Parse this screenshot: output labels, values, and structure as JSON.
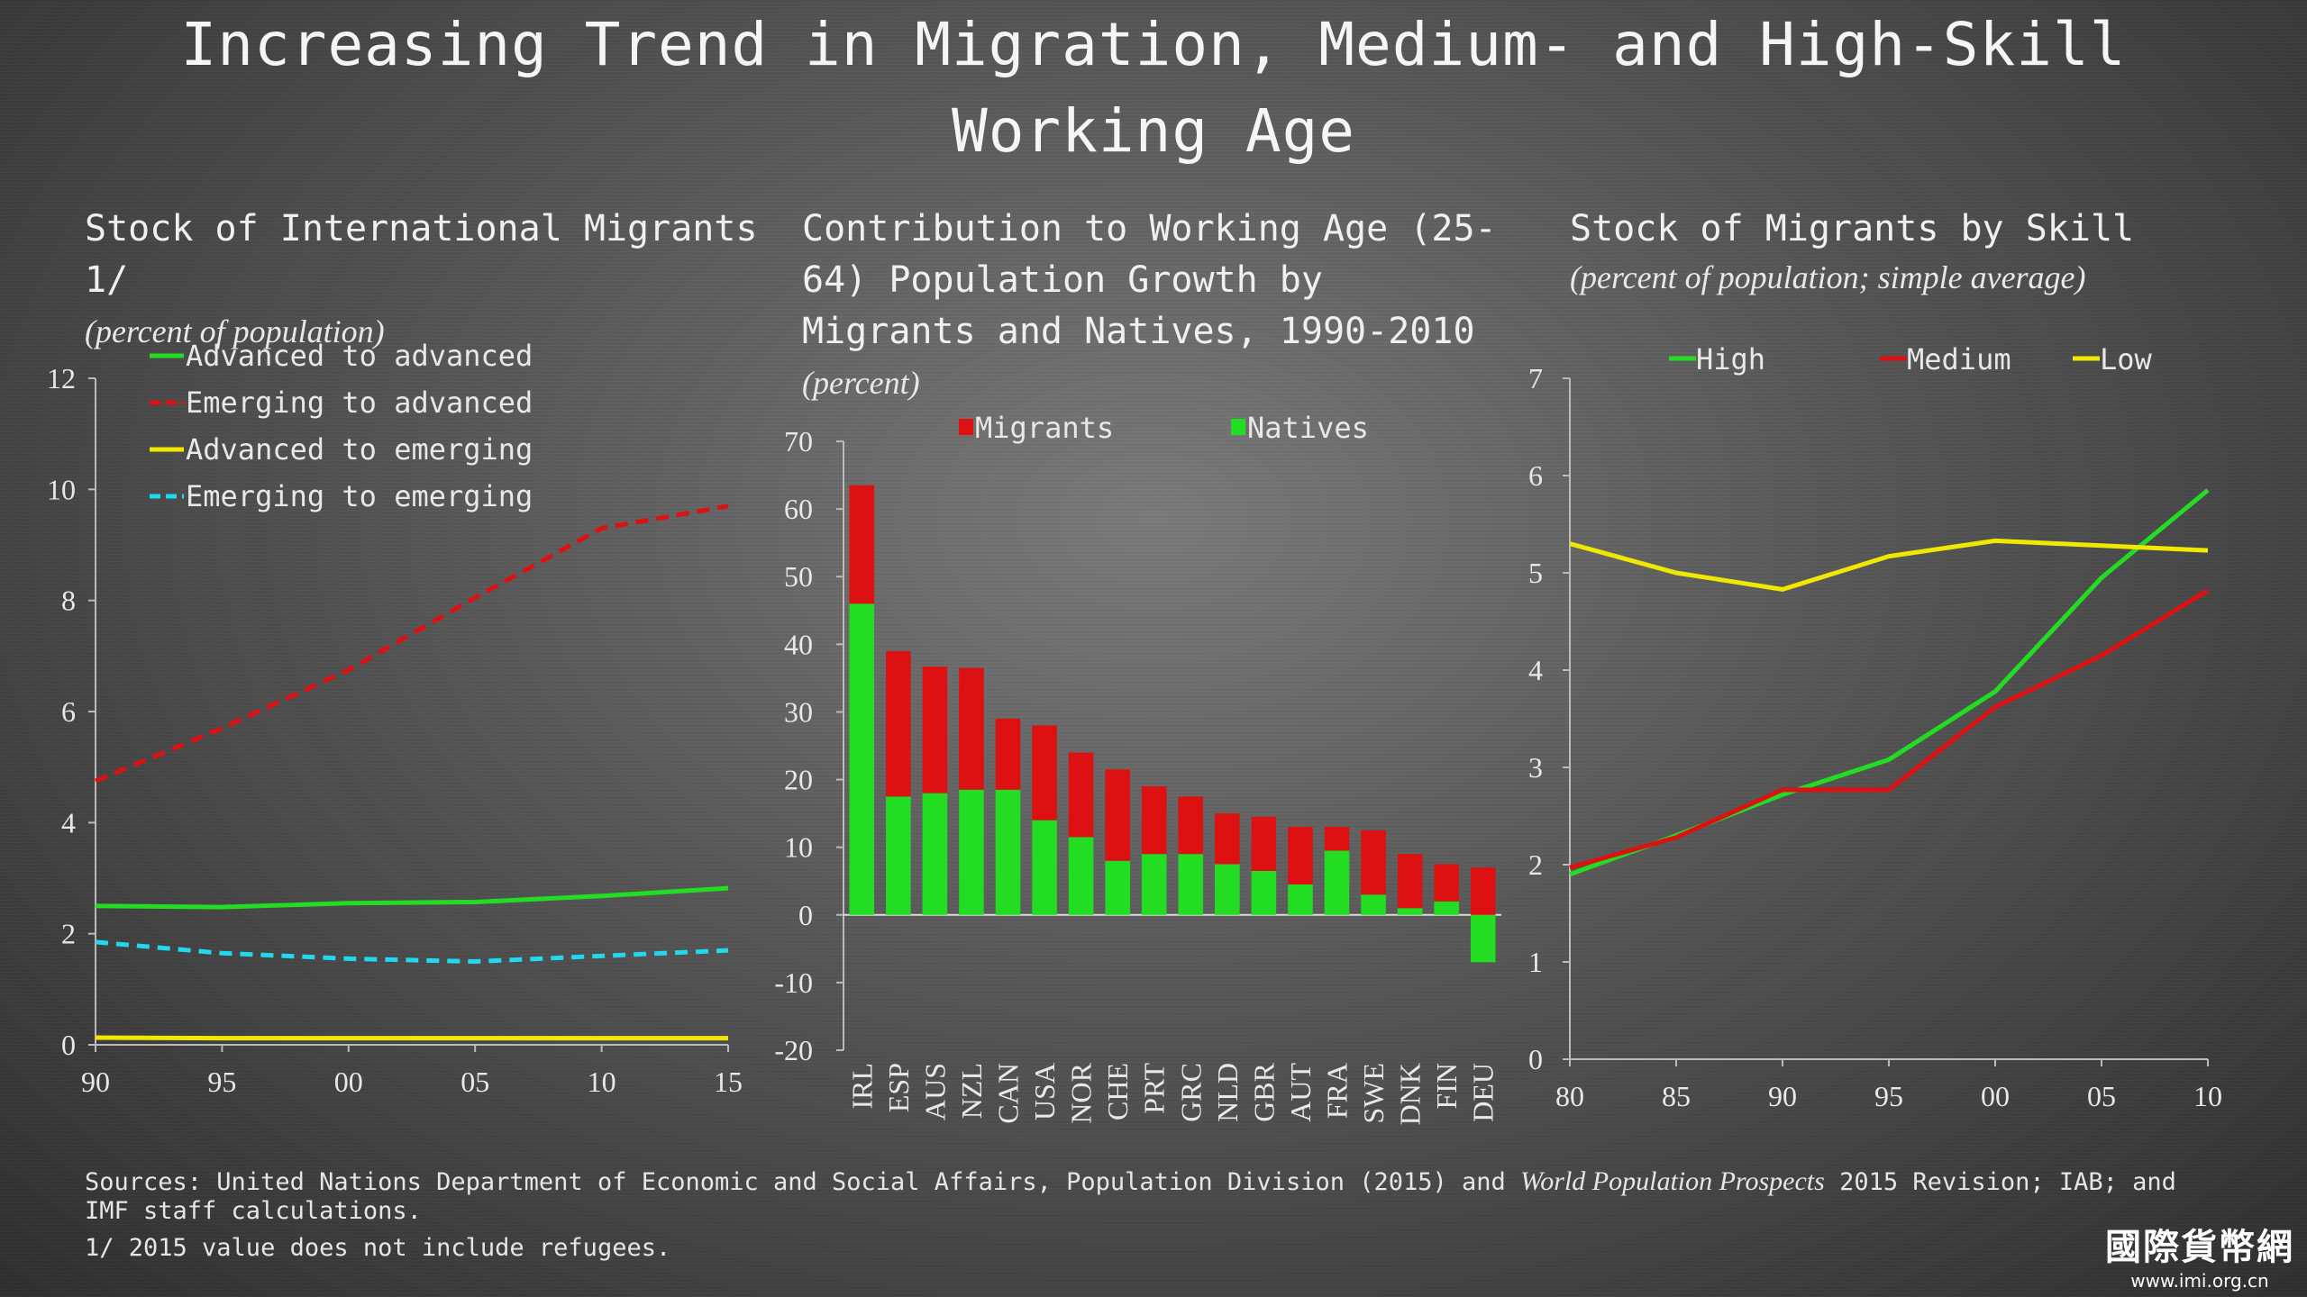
{
  "title": "Increasing Trend in Migration, Medium- and High-Skill Working Age",
  "panels": {
    "left": {
      "title": "Stock of International Migrants 1/",
      "subtitle": "(percent of population)"
    },
    "middle": {
      "title": "Contribution to Working Age (25-64) Population Growth by Migrants and Natives, 1990-2010",
      "subtitle": "(percent)"
    },
    "right": {
      "title": "Stock of Migrants by Skill",
      "subtitle": "(percent of population; simple average)"
    }
  },
  "footer": {
    "sources_prefix": "Sources: United Nations Department of Economic and Social Affairs, Population Division (2015) and ",
    "sources_italic": "World Population Prospects",
    "sources_suffix": " 2015 Revision; IAB; and IMF staff calculations.",
    "footnote": "1/ 2015 value does not include refugees."
  },
  "watermark": {
    "logo": "國際貨幣網",
    "url": "www.imi.org.cn"
  },
  "chart_data": [
    {
      "type": "line",
      "x": [
        "90",
        "95",
        "00",
        "05",
        "10",
        "15"
      ],
      "ylim": [
        0,
        12
      ],
      "yticks": [
        0,
        2,
        4,
        6,
        8,
        10,
        12
      ],
      "legend": "top-left",
      "series": [
        {
          "name": "Advanced to advanced",
          "color": "#22dd22",
          "dash": false,
          "values": [
            2.5,
            2.48,
            2.55,
            2.57,
            2.68,
            2.82
          ]
        },
        {
          "name": "Emerging to advanced",
          "color": "#dd1111",
          "dash": true,
          "values": [
            4.75,
            5.7,
            6.75,
            8.05,
            9.3,
            9.7
          ]
        },
        {
          "name": "Advanced to emerging",
          "color": "#f0e800",
          "dash": false,
          "values": [
            0.13,
            0.12,
            0.12,
            0.12,
            0.12,
            0.12
          ]
        },
        {
          "name": "Emerging to emerging",
          "color": "#22d8ee",
          "dash": true,
          "values": [
            1.85,
            1.65,
            1.55,
            1.5,
            1.6,
            1.7
          ]
        }
      ]
    },
    {
      "type": "bar",
      "stacked": true,
      "categories": [
        "IRL",
        "ESP",
        "AUS",
        "NZL",
        "CAN",
        "USA",
        "NOR",
        "CHE",
        "PRT",
        "GRC",
        "NLD",
        "GBR",
        "AUT",
        "FRA",
        "SWE",
        "DNK",
        "FIN",
        "DEU"
      ],
      "ylim": [
        -20,
        70
      ],
      "yticks": [
        -20,
        -10,
        0,
        10,
        20,
        30,
        40,
        50,
        60,
        70
      ],
      "legend": "top",
      "series": [
        {
          "name": "Natives",
          "color": "#22dd22",
          "values": [
            46,
            17.5,
            18,
            18.5,
            18.5,
            14,
            11.5,
            8,
            9,
            9,
            7.5,
            6.5,
            4.5,
            9.5,
            3,
            1,
            2,
            -7
          ]
        },
        {
          "name": "Migrants",
          "color": "#dd1111",
          "values": [
            17.5,
            21.5,
            18.7,
            18,
            10.5,
            14,
            12.5,
            13.5,
            10,
            8.5,
            7.5,
            8,
            8.5,
            3.5,
            9.5,
            8,
            5.5,
            7
          ]
        }
      ]
    },
    {
      "type": "line",
      "x": [
        "80",
        "85",
        "90",
        "95",
        "00",
        "05",
        "10"
      ],
      "ylim": [
        0,
        7
      ],
      "yticks": [
        0,
        1,
        2,
        3,
        4,
        5,
        6,
        7
      ],
      "legend": "top",
      "series": [
        {
          "name": "High",
          "color": "#22dd22",
          "values": [
            1.9,
            2.3,
            2.72,
            3.08,
            3.78,
            4.95,
            5.85
          ]
        },
        {
          "name": "Medium",
          "color": "#dd1111",
          "values": [
            1.97,
            2.28,
            2.77,
            2.77,
            3.62,
            4.15,
            4.82
          ]
        },
        {
          "name": "Low",
          "color": "#f0e800",
          "values": [
            5.3,
            5.0,
            4.83,
            5.17,
            5.33,
            5.28,
            5.23
          ]
        }
      ]
    }
  ]
}
